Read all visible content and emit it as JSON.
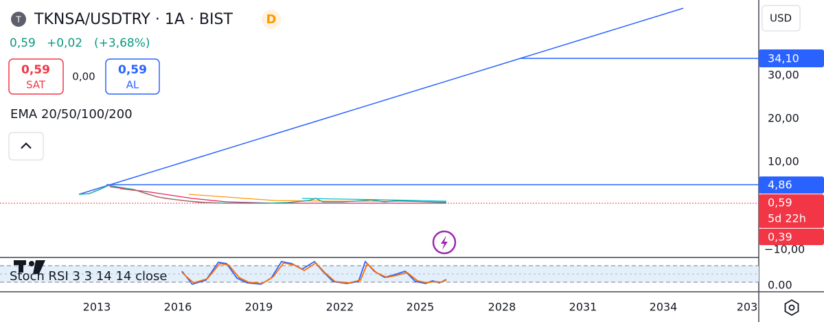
{
  "header": {
    "logo": "T",
    "symbol": "TKNSA/USDTRY · 1A · BIST",
    "badge": "D",
    "price": "0,59",
    "change": "+0,02",
    "change_pct": "(+3,68%)"
  },
  "trade": {
    "sell_price": "0,59",
    "sell_label": "SAT",
    "spread": "0,00",
    "buy_price": "0,59",
    "buy_label": "AL"
  },
  "indicator": "EMA 20/50/100/200",
  "price_axis": {
    "currency": "USD",
    "labels": [
      "30,00",
      "20,00",
      "10,00",
      "−10,00"
    ],
    "badges": {
      "upper_line": "34,10",
      "lower_line": "4,86",
      "last_price": "0,59",
      "countdown": "5d 22h",
      "low": "0,39"
    }
  },
  "oscillator": {
    "label": "Stoch RSI 3 3 14 14 close",
    "axis_label": "0.00"
  },
  "time_axis": [
    "2013",
    "2016",
    "2019",
    "2022",
    "2025",
    "2028",
    "2031",
    "2034",
    "203"
  ]
}
